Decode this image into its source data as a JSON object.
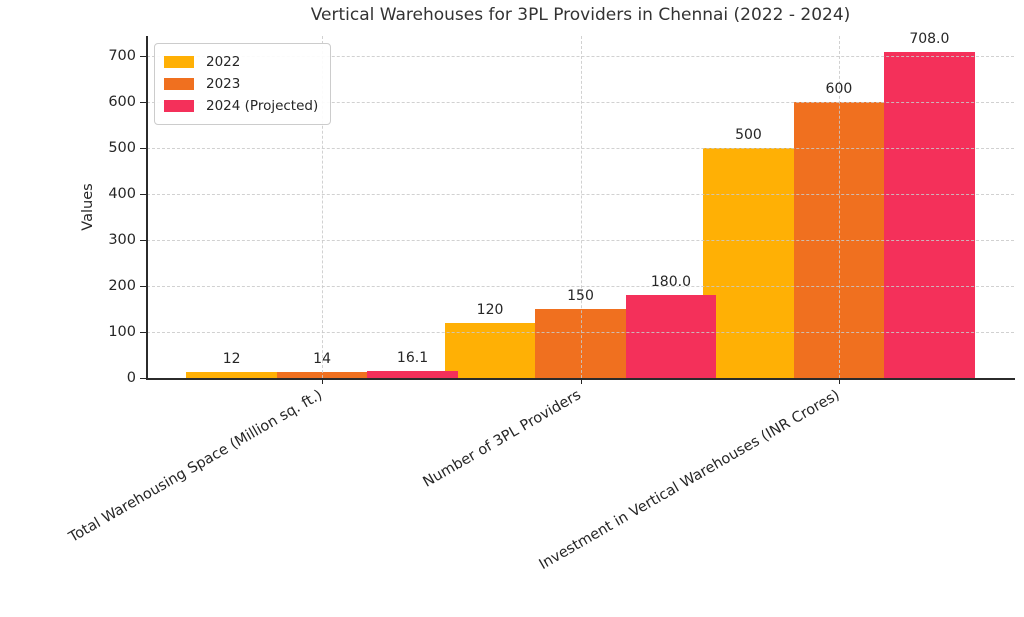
{
  "chart_data": {
    "type": "bar",
    "title": "Vertical Warehouses for 3PL Providers in Chennai (2022 - 2024)",
    "xlabel": "",
    "ylabel": "Values",
    "categories": [
      "Total Warehousing Space (Million sq. ft.)",
      "Number of 3PL Providers",
      "Investment in Vertical Warehouses (INR Crores)"
    ],
    "series": [
      {
        "name": "2022",
        "color": "#FFB005",
        "values": [
          12,
          120,
          500
        ],
        "value_labels": [
          "12",
          "120",
          "500"
        ]
      },
      {
        "name": "2023",
        "color": "#F0701F",
        "values": [
          14,
          150,
          600
        ],
        "value_labels": [
          "14",
          "150",
          "600"
        ]
      },
      {
        "name": "2024 (Projected)",
        "color": "#F4305A",
        "values": [
          16.1,
          180,
          708
        ],
        "value_labels": [
          "16.1",
          "180.0",
          "708.0"
        ]
      }
    ],
    "y_ticks": [
      0,
      100,
      200,
      300,
      400,
      500,
      600,
      700
    ],
    "y_tick_labels": [
      "0",
      "100",
      "200",
      "300",
      "400",
      "500",
      "600",
      "700"
    ],
    "ylim": [
      0,
      743
    ],
    "xlim": [
      -0.6775,
      2.6775
    ],
    "bar_width": 0.35,
    "grid": "dashed-both-axes-above-bars",
    "legend_position": "upper left",
    "x_label_rotation_deg": 30
  },
  "styling": {
    "background": "#ffffff",
    "axis_color": "#2b2b2b",
    "grid_color": "#c9c9c9",
    "text_color": "#262626",
    "title_color": "#333333"
  }
}
